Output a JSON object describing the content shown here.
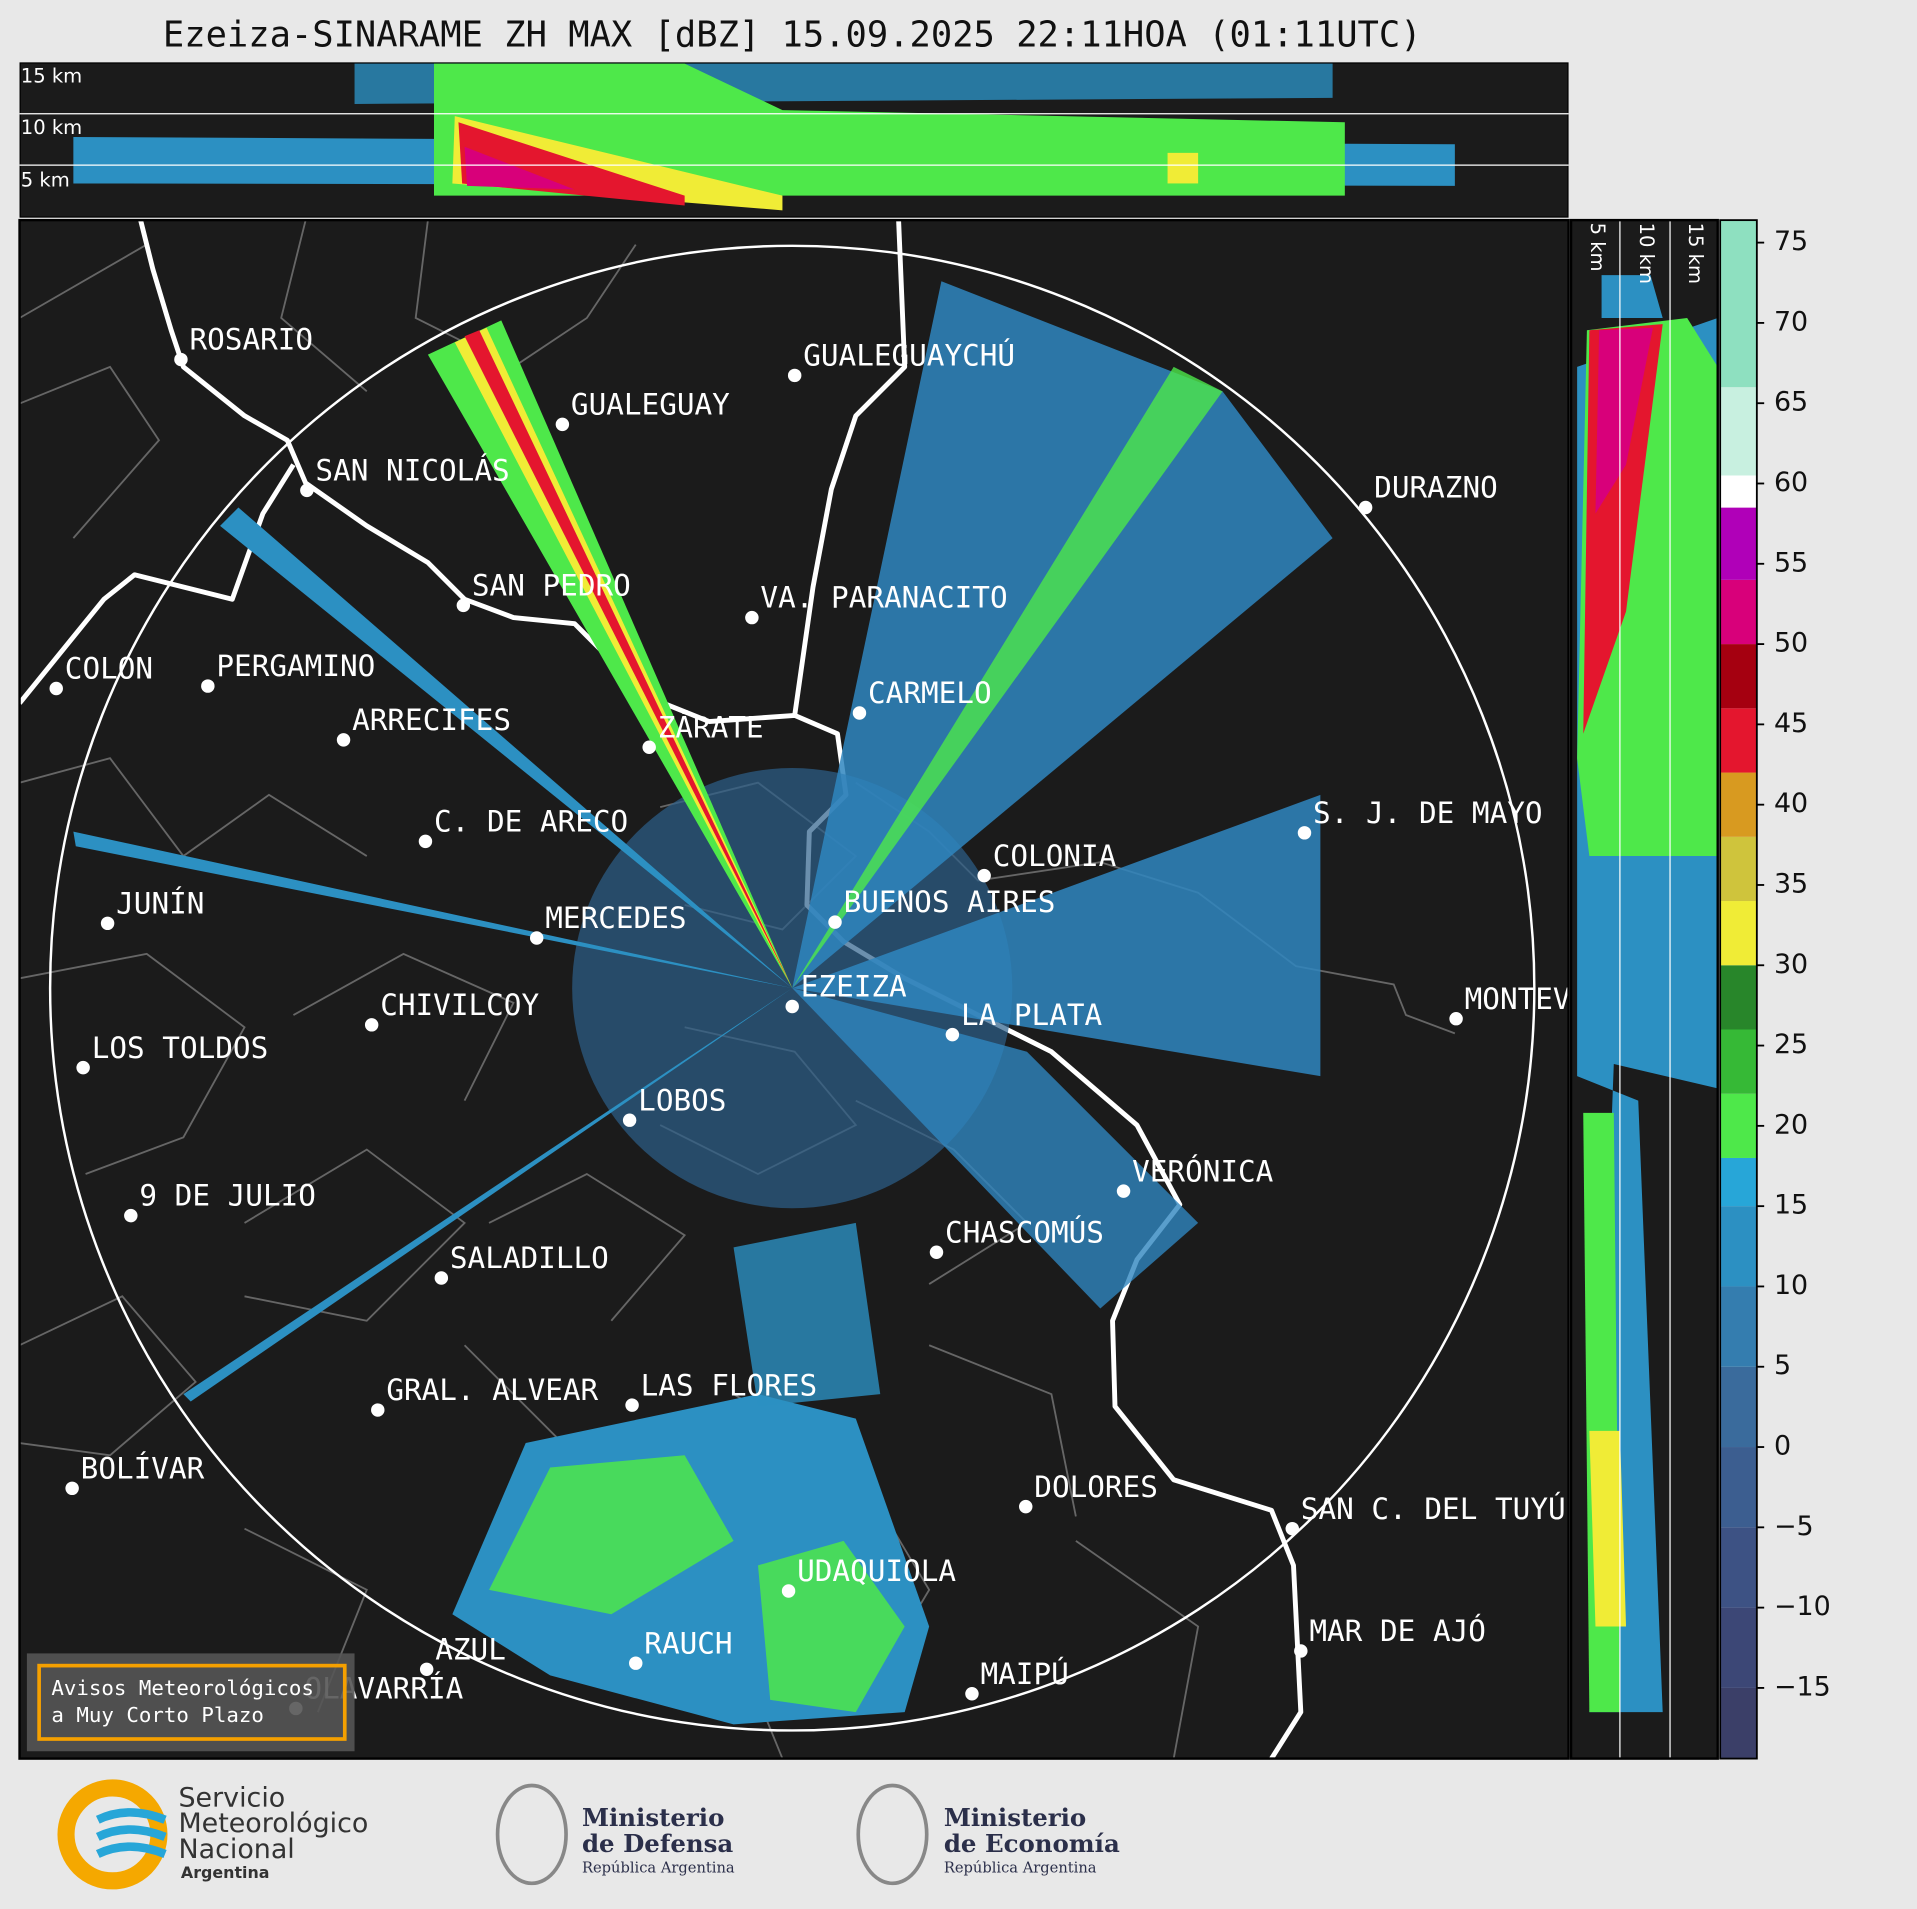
{
  "title": "Ezeiza-SINARAME ZH MAX [dBZ] 15.09.2025 22:11HOA (01:11UTC)",
  "top_panel": {
    "height_labels": [
      "15 km",
      "10 km",
      "5 km"
    ]
  },
  "side_panel": {
    "height_labels": [
      "5 km",
      "10 km",
      "15 km"
    ]
  },
  "map": {
    "cities": [
      "ROSARIO",
      "GUALEGUAYCHÚ",
      "GUALEGUAY",
      "SAN NICOLÁS",
      "DURAZNO",
      "SAN PEDRO",
      "VA. PARANACITO",
      "COLON",
      "PERGAMINO",
      "CARMELO",
      "ARRECIFES",
      "ZÁRATE",
      "C. DE ARECO",
      "S. J. DE MAYO",
      "COLONIA",
      "JUNÍN",
      "BUENOS AIRES",
      "MERCEDES",
      "EZEIZA",
      "CHIVILCOY",
      "MONTEVIDEO",
      "LA PLATA",
      "LOS TOLDOS",
      "LOBOS",
      "VERÓNICA",
      "9 DE JULIO",
      "CHASCOMÚS",
      "SALADILLO",
      "GRAL. ALVEAR",
      "LAS FLORES",
      "BOLÍVAR",
      "DOLORES",
      "SAN C. DEL TUYÚ",
      "UDAQUIOLA",
      "MAR DE AJÓ",
      "RAUCH",
      "AZUL",
      "OLAVARRÍA",
      "MAIPÚ"
    ]
  },
  "colorbar": {
    "lim": [
      -19.4,
      76.4
    ],
    "ticks": [
      75,
      70,
      65,
      60,
      55,
      50,
      45,
      40,
      35,
      30,
      25,
      20,
      15,
      10,
      5,
      0,
      {
        "value": -5,
        "label": "−5"
      },
      {
        "value": -10,
        "label": "−10"
      },
      {
        "value": -15,
        "label": "−15"
      }
    ],
    "bins": [
      {
        "from": -19.4,
        "to": -15,
        "color": "#3b3f68"
      },
      {
        "from": -15,
        "to": -10,
        "color": "#3c4776"
      },
      {
        "from": -10,
        "to": -5,
        "color": "#3d5284"
      },
      {
        "from": -5,
        "to": 0,
        "color": "#3c5e90"
      },
      {
        "from": 0,
        "to": 5,
        "color": "#3a6b9c"
      },
      {
        "from": 5,
        "to": 10,
        "color": "#347daf"
      },
      {
        "from": 10,
        "to": 15,
        "color": "#2c90c2"
      },
      {
        "from": 15,
        "to": 18,
        "color": "#27a6d8"
      },
      {
        "from": 18,
        "to": 22,
        "color": "#4ee84a"
      },
      {
        "from": 22,
        "to": 26,
        "color": "#36b936"
      },
      {
        "from": 26,
        "to": 30,
        "color": "#28862a"
      },
      {
        "from": 30,
        "to": 34,
        "color": "#f0ec36"
      },
      {
        "from": 34,
        "to": 38,
        "color": "#cfc43c"
      },
      {
        "from": 38,
        "to": 42,
        "color": "#d89a20"
      },
      {
        "from": 42,
        "to": 46,
        "color": "#e4162e"
      },
      {
        "from": 46,
        "to": 50,
        "color": "#a50010"
      },
      {
        "from": 50,
        "to": 54,
        "color": "#d8007a"
      },
      {
        "from": 54,
        "to": 58.5,
        "color": "#b000b8"
      },
      {
        "from": 58.5,
        "to": 60.5,
        "color": "#ffffff"
      },
      {
        "from": 60.5,
        "to": 66,
        "color": "#c8f0e0"
      },
      {
        "from": 66,
        "to": 76.4,
        "color": "#8ee0c0"
      }
    ]
  },
  "notice": [
    "Avisos Meteorológicos",
    "a Muy Corto Plazo"
  ],
  "logos": {
    "smn": [
      "Servicio",
      "Meteorológico",
      "Nacional",
      "Argentina"
    ],
    "defensa": [
      "Ministerio",
      "de Defensa",
      "República Argentina"
    ],
    "economia": [
      "Ministerio",
      "de Economía",
      "República Argentina"
    ]
  }
}
